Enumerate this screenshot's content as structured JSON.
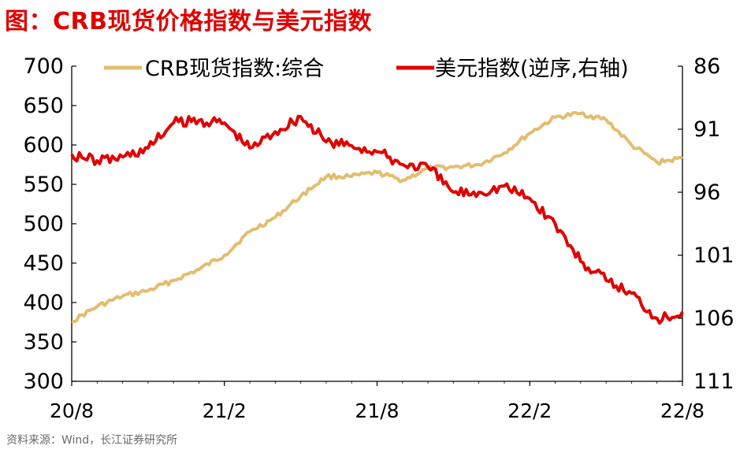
{
  "title": "图：CRB现货价格指数与美元指数",
  "source": "资料来源：Wind，长江证券研究所",
  "colors": {
    "crb": "#e3bd6f",
    "usd": "#e00000",
    "title": "#e00000"
  },
  "chart_data": {
    "type": "line",
    "title": "图：CRB现货价格指数与美元指数",
    "x_ticks": [
      "20/8",
      "21/2",
      "21/8",
      "22/2",
      "22/8"
    ],
    "x_range": [
      "2020-08",
      "2022-08"
    ],
    "y_left": {
      "range": [
        300,
        700
      ],
      "ticks": [
        700,
        650,
        600,
        550,
        500,
        450,
        400,
        350,
        300
      ]
    },
    "y_right": {
      "range": [
        86,
        111
      ],
      "ticks": [
        86,
        91,
        96,
        101,
        106,
        111
      ],
      "inverted": true
    },
    "legend_placement": "top",
    "grid": false,
    "series": [
      {
        "name": "CRB现货指数:综合",
        "axis": "left",
        "x": [
          "2020-08",
          "2020-09",
          "2020-10",
          "2020-11",
          "2020-12",
          "2021-01",
          "2021-02",
          "2021-03",
          "2021-04",
          "2021-05",
          "2021-06",
          "2021-07",
          "2021-08",
          "2021-09",
          "2021-10",
          "2021-11",
          "2021-12",
          "2022-01",
          "2022-02",
          "2022-03",
          "2022-04",
          "2022-05",
          "2022-06",
          "2022-07",
          "2022-08"
        ],
        "y": [
          376,
          395,
          408,
          415,
          428,
          442,
          460,
          490,
          508,
          535,
          560,
          560,
          565,
          555,
          570,
          572,
          575,
          590,
          615,
          635,
          640,
          632,
          600,
          578,
          583
        ]
      },
      {
        "name": "美元指数(逆序,右轴)",
        "axis": "right",
        "x": [
          "2020-08",
          "2020-09",
          "2020-10",
          "2020-11",
          "2020-12",
          "2021-01",
          "2021-02",
          "2021-03",
          "2021-04",
          "2021-05",
          "2021-06",
          "2021-07",
          "2021-08",
          "2021-09",
          "2021-10",
          "2021-11",
          "2021-12",
          "2022-01",
          "2022-02",
          "2022-03",
          "2022-04",
          "2022-05",
          "2022-06",
          "2022-07",
          "2022-08"
        ],
        "y": [
          93,
          93.5,
          93.2,
          92.5,
          90.5,
          90.3,
          90.5,
          92.5,
          91.2,
          90,
          92,
          92.3,
          92.8,
          93.8,
          94,
          96,
          96,
          95.5,
          96.5,
          98.5,
          101.5,
          103,
          104,
          106,
          105.5
        ]
      }
    ]
  }
}
